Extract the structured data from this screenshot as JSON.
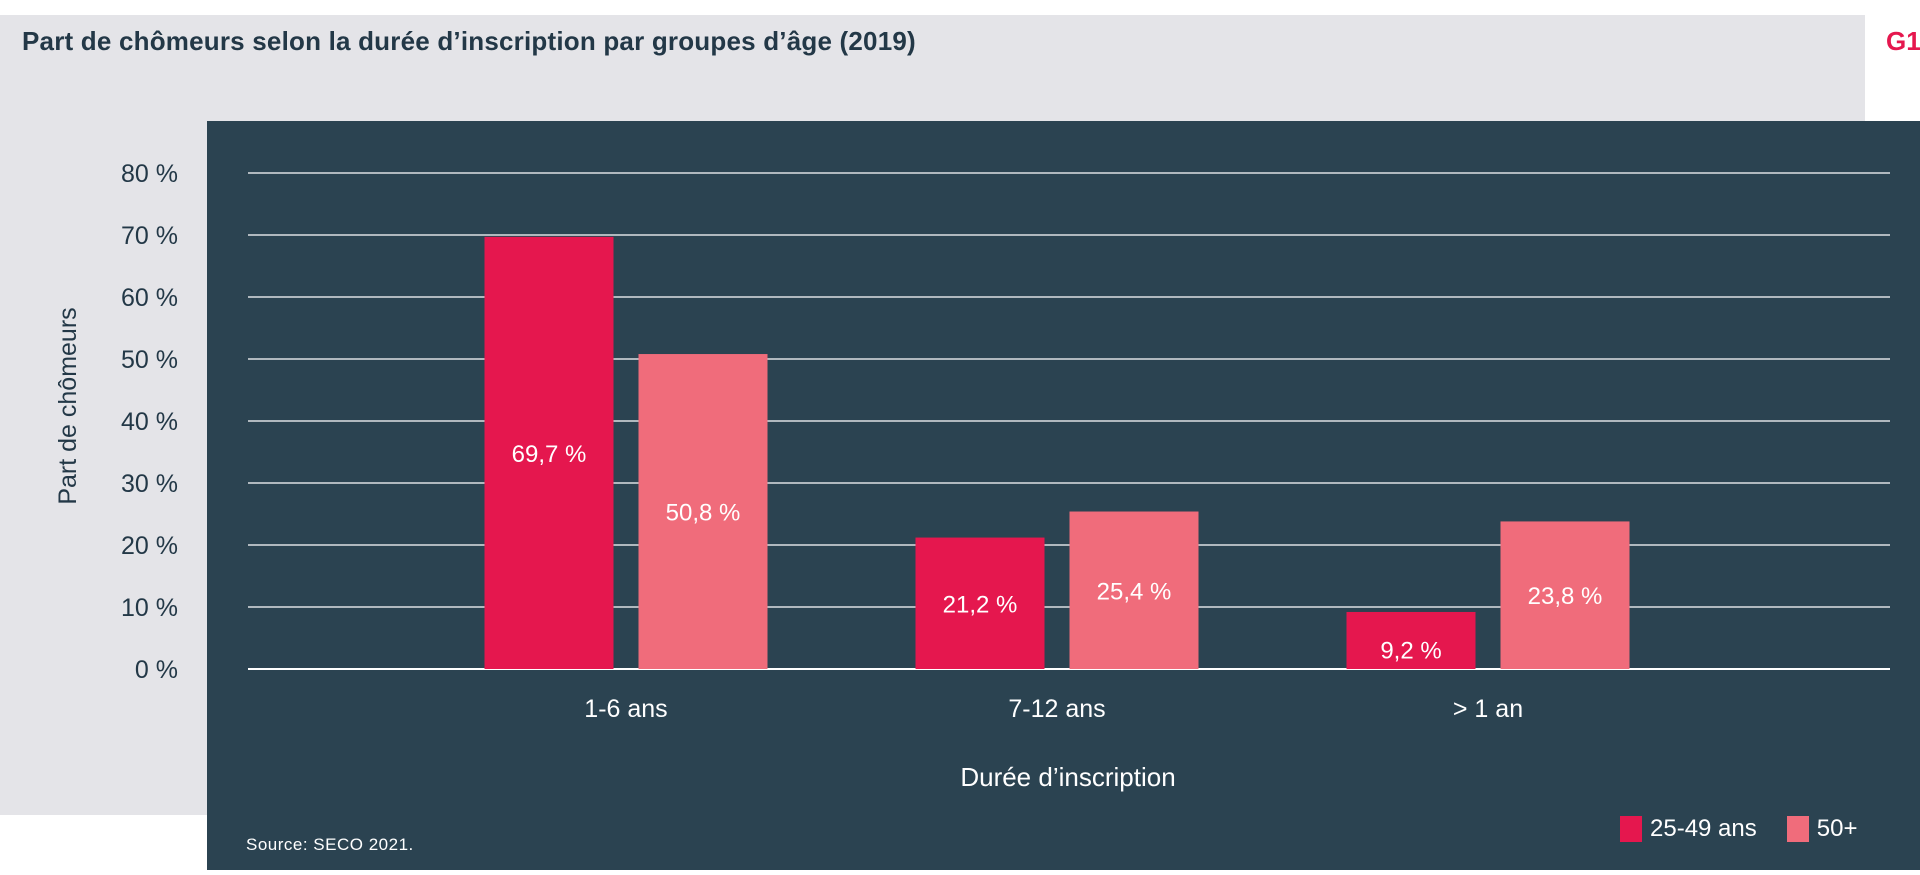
{
  "title": "Part de chômeurs selon la durée d’inscription par groupes d’âge (2019)",
  "badge": "G1",
  "source": "Source: SECO 2021.",
  "colors": {
    "series_1": "#e5174e",
    "series_2": "#f06c7b",
    "panel": "#2b4351",
    "background": "#e4e4e8",
    "title": "#233847"
  },
  "chart_data": {
    "type": "bar",
    "xlabel": "Durée d’inscription",
    "ylabel": "Part de chômeurs",
    "categories": [
      "1-6 ans",
      "7-12 ans",
      "> 1 an"
    ],
    "series": [
      {
        "name": "25-49 ans",
        "values": [
          69.7,
          21.2,
          9.2
        ],
        "labels": [
          "69,7 %",
          "21,2 %",
          "9,2 %"
        ]
      },
      {
        "name": "50+",
        "values": [
          50.8,
          25.4,
          23.8
        ],
        "labels": [
          "50,8 %",
          "25,4 %",
          "23,8 %"
        ]
      }
    ],
    "ylim": [
      0,
      80
    ],
    "yticks": [
      0,
      10,
      20,
      30,
      40,
      50,
      60,
      70,
      80
    ],
    "ytick_labels": [
      "0 %",
      "10 %",
      "20 %",
      "30 %",
      "40 %",
      "50 %",
      "60 %",
      "70 %",
      "80 %"
    ],
    "grid": true,
    "legend_position": "bottom-right"
  }
}
